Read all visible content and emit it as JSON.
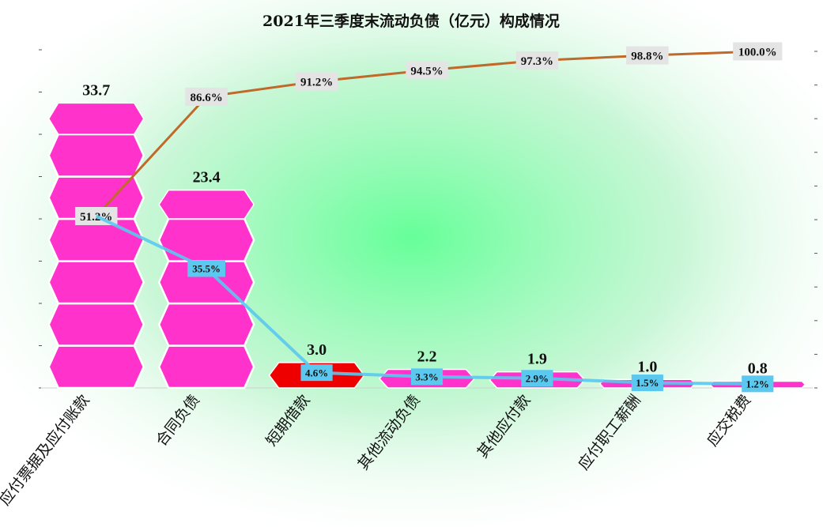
{
  "chart_data": {
    "type": "bar",
    "title": "2021年三季度末流动负债（亿元）构成情况",
    "categories": [
      "应付票据及应付账款",
      "合同负债",
      "短期借款",
      "其他流动负债",
      "其他应付款",
      "应付职工薪酬",
      "应交税费"
    ],
    "values": [
      33.7,
      23.4,
      3.0,
      2.2,
      1.9,
      1.0,
      0.8
    ],
    "value_labels": [
      "33.7",
      "23.4",
      "3.0",
      "2.2",
      "1.9",
      "1.0",
      "0.8"
    ],
    "share_labels": [
      "51.2%",
      "35.5%",
      "4.6%",
      "3.3%",
      "2.9%",
      "1.5%",
      "1.2%"
    ],
    "cumulative_labels": [
      "51.2%",
      "86.6%",
      "91.2%",
      "94.5%",
      "97.3%",
      "98.8%",
      "100.0%"
    ],
    "highlight_index": 2,
    "colors": {
      "bar": "#ff33cc",
      "highlight_bar": "#ee0000",
      "share_line": "#5bc8f0",
      "cumulative_line": "#c0692a",
      "share_label_bg": "#5bc8f0",
      "cumulative_label_bg": "#e4e4e4",
      "background_glow": "#66ff99"
    },
    "ylim_left": [
      0,
      40
    ],
    "ylim_right": [
      0,
      1
    ],
    "grid": false,
    "legend": "none"
  }
}
